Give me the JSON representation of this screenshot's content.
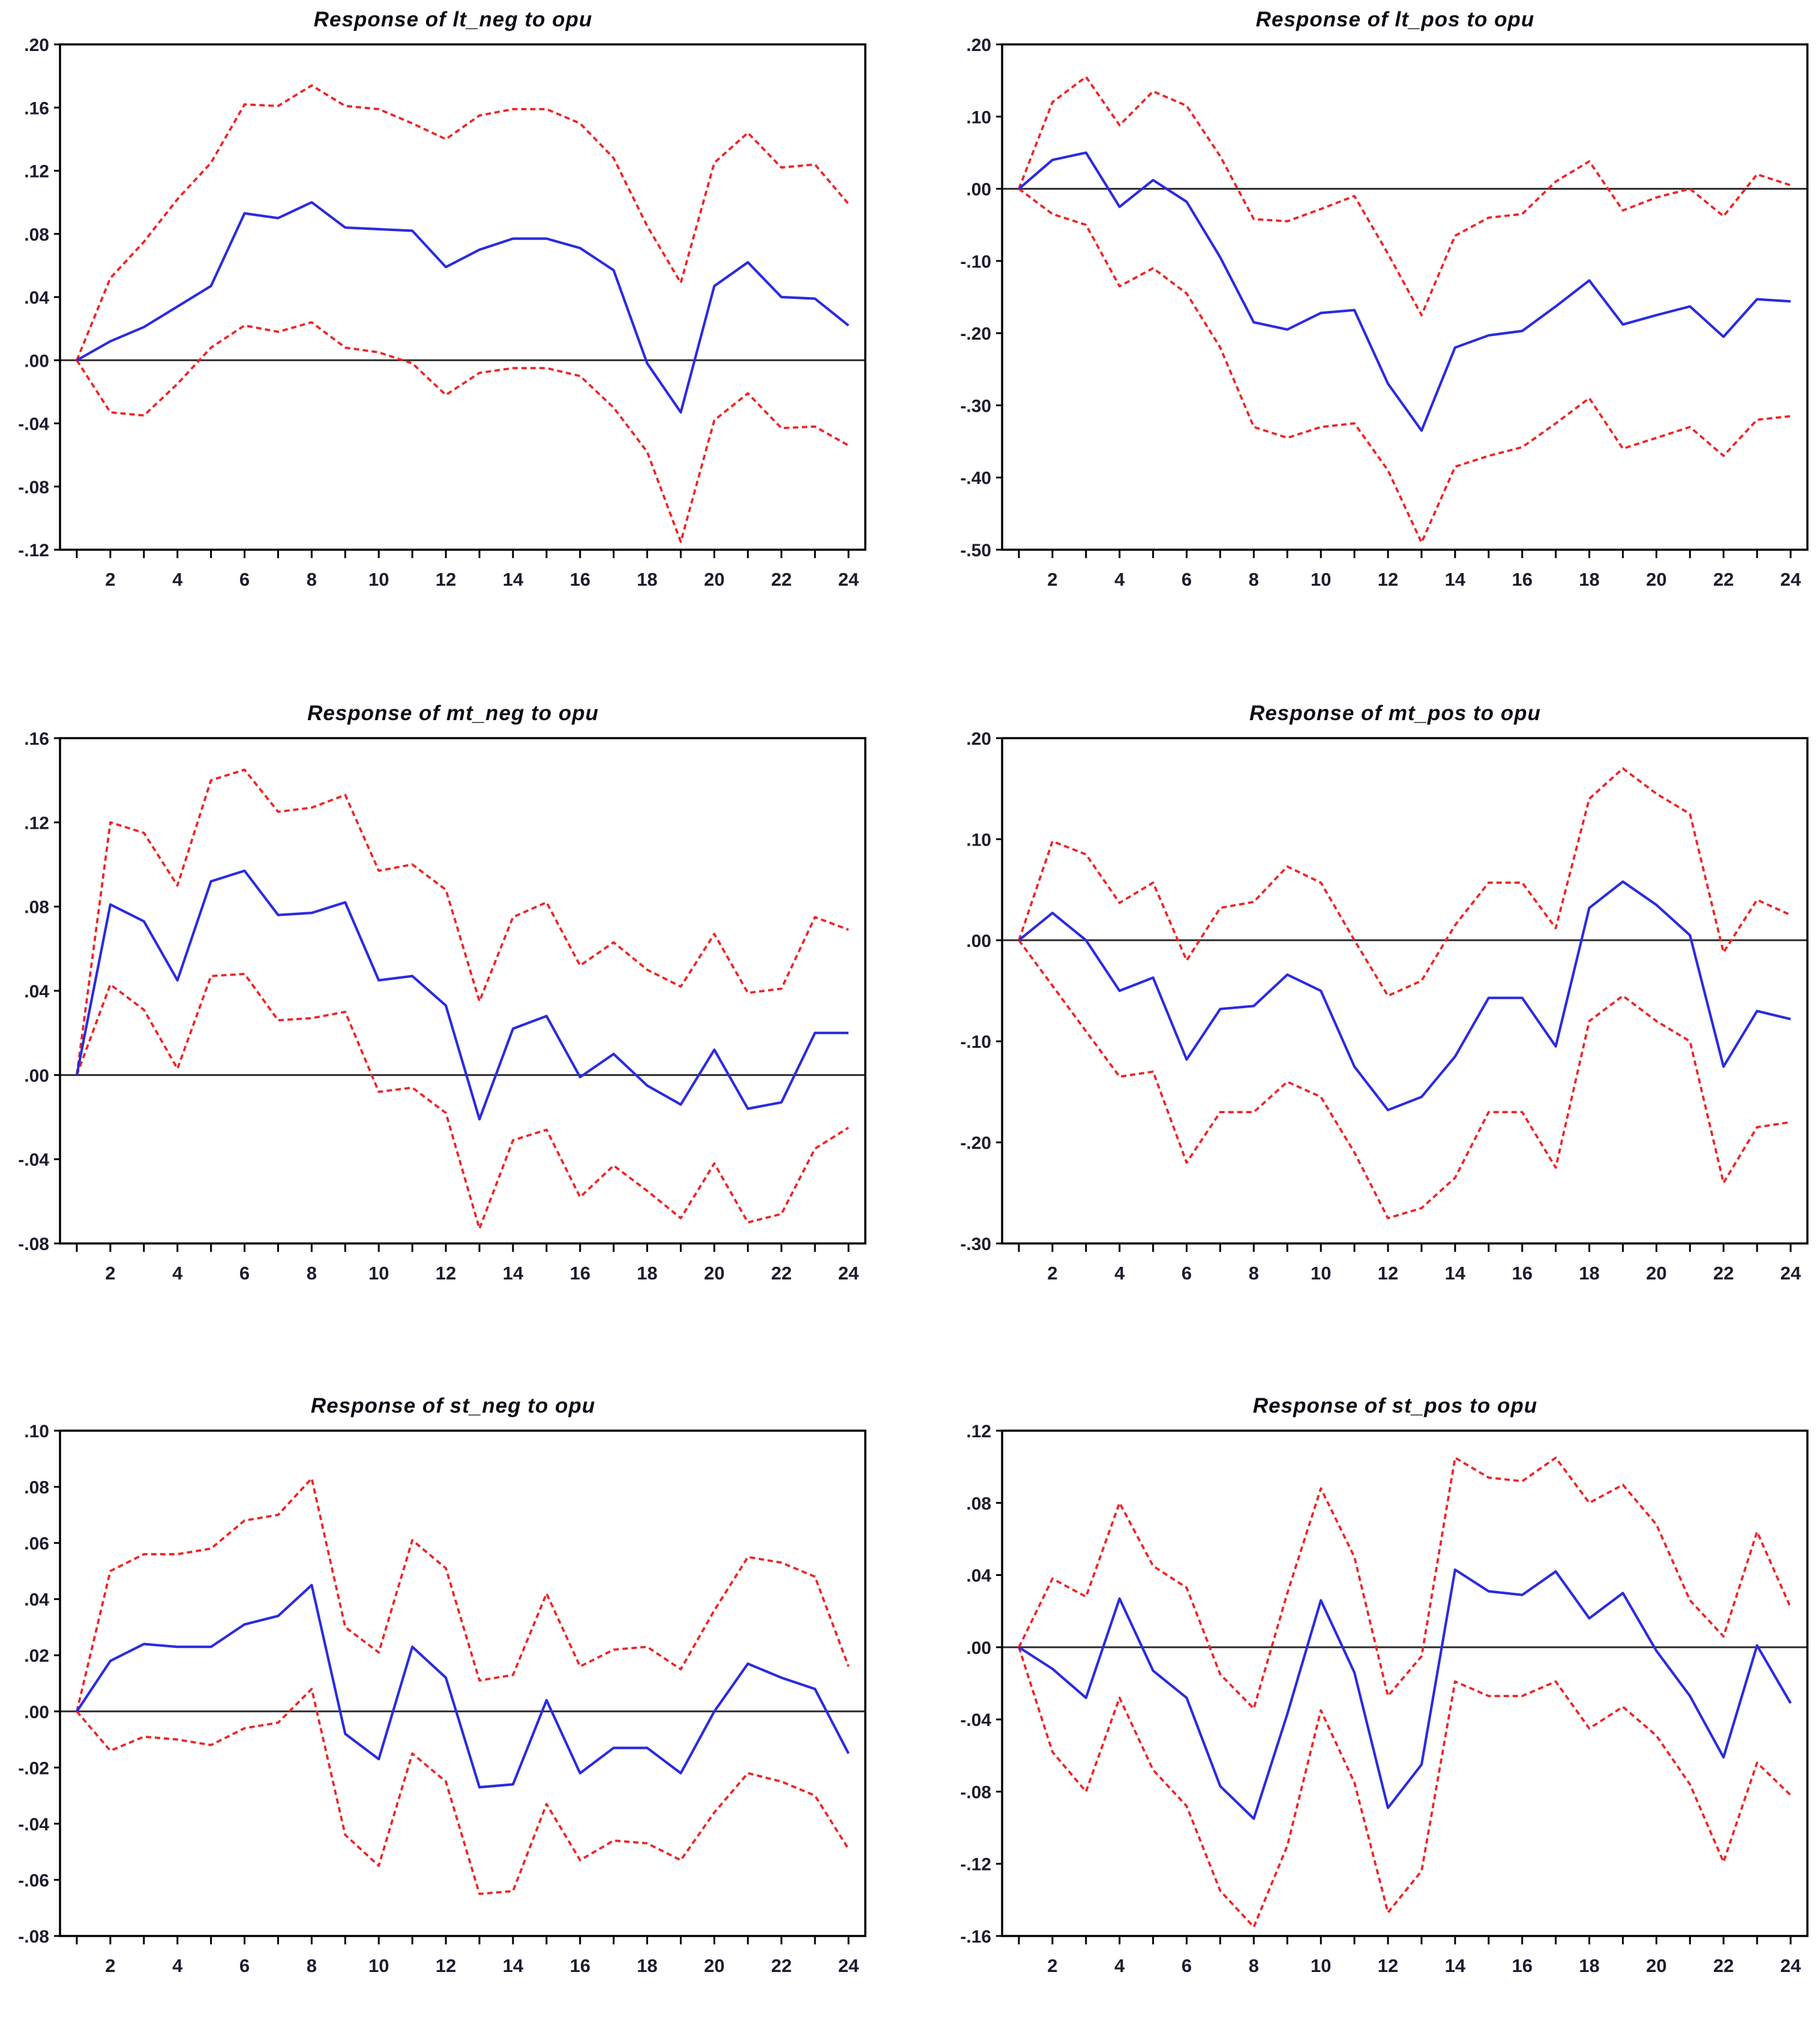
{
  "page": {
    "background": "#ffffff",
    "description": "Grid of six VAR impulse response charts (response lines with dashed confidence bands)"
  },
  "style": {
    "response_color": "#2b2be0",
    "band_color": "#ee2525",
    "axis_color": "#000000",
    "zero_line_color": "#2a2a2a",
    "title_color": "#0d0d16",
    "tick_label_color": "#1c1c2e"
  },
  "x_axis": {
    "periods_start": 1,
    "periods_end": 24,
    "labeled_ticks": [
      2,
      4,
      6,
      8,
      10,
      12,
      14,
      16,
      18,
      20,
      22,
      24
    ]
  },
  "chart_data": [
    {
      "id": "lt_neg",
      "type": "line",
      "title": "Response of lt_neg to opu",
      "xlabel": "",
      "ylabel": "",
      "grid": false,
      "zero_line": true,
      "legend_position": "none",
      "x": [
        1,
        2,
        3,
        4,
        5,
        6,
        7,
        8,
        9,
        10,
        11,
        12,
        13,
        14,
        15,
        16,
        17,
        18,
        19,
        20,
        21,
        22,
        23,
        24
      ],
      "ylim": [
        -0.12,
        0.2
      ],
      "ytick_values": [
        0.2,
        0.16,
        0.12,
        0.08,
        0.04,
        0.0,
        -0.04,
        -0.08,
        -0.12
      ],
      "ytick_labels": [
        ".20",
        ".16",
        ".12",
        ".08",
        ".04",
        ".00",
        "-.04",
        "-.08",
        "-.12"
      ],
      "series": [
        {
          "name": "response",
          "style": "solid",
          "color_key": "response_color",
          "values": [
            0.0,
            0.012,
            0.021,
            0.034,
            0.047,
            0.093,
            0.09,
            0.1,
            0.084,
            0.083,
            0.082,
            0.059,
            0.07,
            0.077,
            0.077,
            0.071,
            0.057,
            -0.002,
            -0.033,
            0.047,
            0.062,
            0.04,
            0.039,
            0.022
          ]
        },
        {
          "name": "upper_band",
          "style": "dashed",
          "color_key": "band_color",
          "values": [
            0.0,
            0.052,
            0.075,
            0.102,
            0.125,
            0.162,
            0.161,
            0.174,
            0.161,
            0.159,
            0.15,
            0.14,
            0.155,
            0.159,
            0.159,
            0.15,
            0.128,
            0.085,
            0.049,
            0.125,
            0.144,
            0.122,
            0.124,
            0.099
          ]
        },
        {
          "name": "lower_band",
          "style": "dashed",
          "color_key": "band_color",
          "values": [
            0.0,
            -0.033,
            -0.035,
            -0.015,
            0.008,
            0.022,
            0.018,
            0.024,
            0.008,
            0.005,
            -0.002,
            -0.022,
            -0.008,
            -0.005,
            -0.005,
            -0.01,
            -0.03,
            -0.058,
            -0.115,
            -0.038,
            -0.021,
            -0.043,
            -0.042,
            -0.054
          ]
        }
      ]
    },
    {
      "id": "lt_pos",
      "type": "line",
      "title": "Response of lt_pos to opu",
      "xlabel": "",
      "ylabel": "",
      "grid": false,
      "zero_line": true,
      "legend_position": "none",
      "x": [
        1,
        2,
        3,
        4,
        5,
        6,
        7,
        8,
        9,
        10,
        11,
        12,
        13,
        14,
        15,
        16,
        17,
        18,
        19,
        20,
        21,
        22,
        23,
        24
      ],
      "ylim": [
        -0.5,
        0.2
      ],
      "ytick_values": [
        0.2,
        0.1,
        0.0,
        -0.1,
        -0.2,
        -0.3,
        -0.4,
        -0.5
      ],
      "ytick_labels": [
        ".20",
        ".10",
        ".00",
        "-.10",
        "-.20",
        "-.30",
        "-.40",
        "-.50"
      ],
      "series": [
        {
          "name": "response",
          "style": "solid",
          "color_key": "response_color",
          "values": [
            0.0,
            0.04,
            0.05,
            -0.025,
            0.012,
            -0.018,
            -0.095,
            -0.185,
            -0.195,
            -0.172,
            -0.168,
            -0.27,
            -0.335,
            -0.22,
            -0.203,
            -0.197,
            -0.163,
            -0.127,
            -0.188,
            -0.175,
            -0.163,
            -0.205,
            -0.153,
            -0.156
          ]
        },
        {
          "name": "upper_band",
          "style": "dashed",
          "color_key": "band_color",
          "values": [
            0.0,
            0.12,
            0.155,
            0.088,
            0.135,
            0.115,
            0.045,
            -0.042,
            -0.045,
            -0.028,
            -0.01,
            -0.09,
            -0.175,
            -0.065,
            -0.04,
            -0.035,
            0.01,
            0.038,
            -0.03,
            -0.012,
            0.0,
            -0.038,
            0.02,
            0.005
          ]
        },
        {
          "name": "lower_band",
          "style": "dashed",
          "color_key": "band_color",
          "values": [
            0.0,
            -0.035,
            -0.05,
            -0.135,
            -0.11,
            -0.145,
            -0.22,
            -0.33,
            -0.345,
            -0.33,
            -0.325,
            -0.39,
            -0.49,
            -0.385,
            -0.37,
            -0.358,
            -0.325,
            -0.29,
            -0.36,
            -0.345,
            -0.33,
            -0.37,
            -0.32,
            -0.315
          ]
        }
      ]
    },
    {
      "id": "mt_neg",
      "type": "line",
      "title": "Response of mt_neg to opu",
      "xlabel": "",
      "ylabel": "",
      "grid": false,
      "zero_line": true,
      "legend_position": "none",
      "x": [
        1,
        2,
        3,
        4,
        5,
        6,
        7,
        8,
        9,
        10,
        11,
        12,
        13,
        14,
        15,
        16,
        17,
        18,
        19,
        20,
        21,
        22,
        23,
        24
      ],
      "ylim": [
        -0.08,
        0.16
      ],
      "ytick_values": [
        0.16,
        0.12,
        0.08,
        0.04,
        0.0,
        -0.04,
        -0.08
      ],
      "ytick_labels": [
        ".16",
        ".12",
        ".08",
        ".04",
        ".00",
        "-.04",
        "-.08"
      ],
      "series": [
        {
          "name": "response",
          "style": "solid",
          "color_key": "response_color",
          "values": [
            0.0,
            0.081,
            0.073,
            0.045,
            0.092,
            0.097,
            0.076,
            0.077,
            0.082,
            0.045,
            0.047,
            0.033,
            -0.021,
            0.022,
            0.028,
            -0.001,
            0.01,
            -0.005,
            -0.014,
            0.012,
            -0.016,
            -0.013,
            0.02,
            0.02
          ]
        },
        {
          "name": "upper_band",
          "style": "dashed",
          "color_key": "band_color",
          "values": [
            0.0,
            0.12,
            0.115,
            0.09,
            0.14,
            0.145,
            0.125,
            0.127,
            0.133,
            0.097,
            0.1,
            0.088,
            0.035,
            0.075,
            0.082,
            0.052,
            0.063,
            0.05,
            0.042,
            0.067,
            0.039,
            0.041,
            0.075,
            0.069
          ]
        },
        {
          "name": "lower_band",
          "style": "dashed",
          "color_key": "band_color",
          "values": [
            0.0,
            0.043,
            0.031,
            0.003,
            0.047,
            0.048,
            0.026,
            0.027,
            0.03,
            -0.008,
            -0.006,
            -0.018,
            -0.073,
            -0.031,
            -0.026,
            -0.058,
            -0.043,
            -0.055,
            -0.068,
            -0.042,
            -0.07,
            -0.066,
            -0.035,
            -0.025
          ]
        }
      ]
    },
    {
      "id": "mt_pos",
      "type": "line",
      "title": "Response of mt_pos to opu",
      "xlabel": "",
      "ylabel": "",
      "grid": false,
      "zero_line": true,
      "legend_position": "none",
      "x": [
        1,
        2,
        3,
        4,
        5,
        6,
        7,
        8,
        9,
        10,
        11,
        12,
        13,
        14,
        15,
        16,
        17,
        18,
        19,
        20,
        21,
        22,
        23,
        24
      ],
      "ylim": [
        -0.3,
        0.2
      ],
      "ytick_values": [
        0.2,
        0.1,
        0.0,
        -0.1,
        -0.2,
        -0.3
      ],
      "ytick_labels": [
        ".20",
        ".10",
        ".00",
        "-.10",
        "-.20",
        "-.30"
      ],
      "series": [
        {
          "name": "response",
          "style": "solid",
          "color_key": "response_color",
          "values": [
            0.0,
            0.027,
            0.0,
            -0.05,
            -0.037,
            -0.118,
            -0.068,
            -0.065,
            -0.034,
            -0.05,
            -0.125,
            -0.168,
            -0.155,
            -0.115,
            -0.057,
            -0.057,
            -0.105,
            0.032,
            0.058,
            0.035,
            0.005,
            -0.125,
            -0.07,
            -0.078
          ]
        },
        {
          "name": "upper_band",
          "style": "dashed",
          "color_key": "band_color",
          "values": [
            0.0,
            0.098,
            0.085,
            0.037,
            0.057,
            -0.02,
            0.032,
            0.038,
            0.073,
            0.057,
            0.0,
            -0.055,
            -0.04,
            0.015,
            0.057,
            0.057,
            0.012,
            0.14,
            0.17,
            0.145,
            0.125,
            -0.012,
            0.04,
            0.025
          ]
        },
        {
          "name": "lower_band",
          "style": "dashed",
          "color_key": "band_color",
          "values": [
            0.0,
            -0.045,
            -0.09,
            -0.135,
            -0.13,
            -0.22,
            -0.17,
            -0.17,
            -0.14,
            -0.155,
            -0.21,
            -0.275,
            -0.265,
            -0.235,
            -0.17,
            -0.17,
            -0.225,
            -0.08,
            -0.055,
            -0.08,
            -0.1,
            -0.24,
            -0.185,
            -0.18
          ]
        }
      ]
    },
    {
      "id": "st_neg",
      "type": "line",
      "title": "Response of st_neg to opu",
      "xlabel": "",
      "ylabel": "",
      "grid": false,
      "zero_line": true,
      "legend_position": "none",
      "x": [
        1,
        2,
        3,
        4,
        5,
        6,
        7,
        8,
        9,
        10,
        11,
        12,
        13,
        14,
        15,
        16,
        17,
        18,
        19,
        20,
        21,
        22,
        23,
        24
      ],
      "ylim": [
        -0.08,
        0.1
      ],
      "ytick_values": [
        0.1,
        0.08,
        0.06,
        0.04,
        0.02,
        0.0,
        -0.02,
        -0.04,
        -0.06,
        -0.08
      ],
      "ytick_labels": [
        ".10",
        ".08",
        ".06",
        ".04",
        ".02",
        ".00",
        "-.02",
        "-.04",
        "-.06",
        "-.08"
      ],
      "series": [
        {
          "name": "response",
          "style": "solid",
          "color_key": "response_color",
          "values": [
            0.0,
            0.018,
            0.024,
            0.023,
            0.023,
            0.031,
            0.034,
            0.045,
            -0.008,
            -0.017,
            0.023,
            0.012,
            -0.027,
            -0.026,
            0.004,
            -0.022,
            -0.013,
            -0.013,
            -0.022,
            0.0,
            0.017,
            0.012,
            0.008,
            -0.015
          ]
        },
        {
          "name": "upper_band",
          "style": "dashed",
          "color_key": "band_color",
          "values": [
            0.0,
            0.05,
            0.056,
            0.056,
            0.058,
            0.068,
            0.07,
            0.083,
            0.03,
            0.021,
            0.061,
            0.051,
            0.011,
            0.013,
            0.042,
            0.016,
            0.022,
            0.023,
            0.015,
            0.036,
            0.055,
            0.053,
            0.048,
            0.016
          ]
        },
        {
          "name": "lower_band",
          "style": "dashed",
          "color_key": "band_color",
          "values": [
            0.0,
            -0.014,
            -0.009,
            -0.01,
            -0.012,
            -0.006,
            -0.004,
            0.008,
            -0.044,
            -0.055,
            -0.015,
            -0.025,
            -0.065,
            -0.064,
            -0.033,
            -0.053,
            -0.046,
            -0.047,
            -0.053,
            -0.036,
            -0.022,
            -0.025,
            -0.03,
            -0.049
          ]
        }
      ]
    },
    {
      "id": "st_pos",
      "type": "line",
      "title": "Response of st_pos to opu",
      "xlabel": "",
      "ylabel": "",
      "grid": false,
      "zero_line": true,
      "legend_position": "none",
      "x": [
        1,
        2,
        3,
        4,
        5,
        6,
        7,
        8,
        9,
        10,
        11,
        12,
        13,
        14,
        15,
        16,
        17,
        18,
        19,
        20,
        21,
        22,
        23,
        24
      ],
      "ylim": [
        -0.16,
        0.12
      ],
      "ytick_values": [
        0.12,
        0.08,
        0.04,
        0.0,
        -0.04,
        -0.08,
        -0.12,
        -0.16
      ],
      "ytick_labels": [
        ".12",
        ".08",
        ".04",
        ".00",
        "-.04",
        "-.08",
        "-.12",
        "-.16"
      ],
      "series": [
        {
          "name": "response",
          "style": "solid",
          "color_key": "response_color",
          "values": [
            0.0,
            -0.012,
            -0.028,
            0.027,
            -0.013,
            -0.028,
            -0.077,
            -0.095,
            -0.037,
            0.026,
            -0.014,
            -0.089,
            -0.065,
            0.043,
            0.031,
            0.029,
            0.042,
            0.016,
            0.03,
            -0.002,
            -0.027,
            -0.061,
            0.001,
            -0.031
          ]
        },
        {
          "name": "upper_band",
          "style": "dashed",
          "color_key": "band_color",
          "values": [
            0.0,
            0.038,
            0.028,
            0.08,
            0.045,
            0.033,
            -0.015,
            -0.034,
            0.03,
            0.088,
            0.05,
            -0.027,
            -0.005,
            0.105,
            0.094,
            0.092,
            0.105,
            0.08,
            0.09,
            0.068,
            0.026,
            0.006,
            0.064,
            0.022
          ]
        },
        {
          "name": "lower_band",
          "style": "dashed",
          "color_key": "band_color",
          "values": [
            0.0,
            -0.058,
            -0.08,
            -0.028,
            -0.068,
            -0.088,
            -0.135,
            -0.155,
            -0.11,
            -0.035,
            -0.075,
            -0.147,
            -0.124,
            -0.019,
            -0.027,
            -0.027,
            -0.019,
            -0.045,
            -0.033,
            -0.049,
            -0.076,
            -0.119,
            -0.064,
            -0.082
          ]
        }
      ]
    }
  ]
}
